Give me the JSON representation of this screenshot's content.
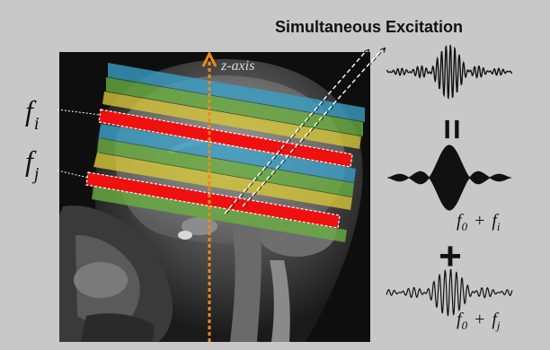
{
  "title": "Simultaneous Excitation",
  "axis_label": "z-axis",
  "slice_labels": [
    {
      "symbol": "f",
      "subscript": "i"
    },
    {
      "symbol": "f",
      "subscript": "j"
    }
  ],
  "equals_sign": "=",
  "plus_sign": "+",
  "pulse_labels": [
    {
      "base": "f",
      "base_sub": "0",
      "op": "+",
      "freq": "f",
      "freq_sub": "i"
    },
    {
      "base": "f",
      "base_sub": "0",
      "op": "+",
      "freq": "f",
      "freq_sub": "j"
    }
  ],
  "colors": {
    "background": "#c8c8c8",
    "slice_red": "#f01010",
    "axis_orange": "#f08a18",
    "band_blue": "#3aa0c8",
    "band_green": "#6ab040",
    "band_yellow": "#d8c838",
    "pulse": "#111111"
  },
  "icons": {
    "mri": "sagittal-head-mri-image",
    "pulse": "sinc-rf-pulse-waveform",
    "arrow": "dashed-arrow-icon"
  }
}
